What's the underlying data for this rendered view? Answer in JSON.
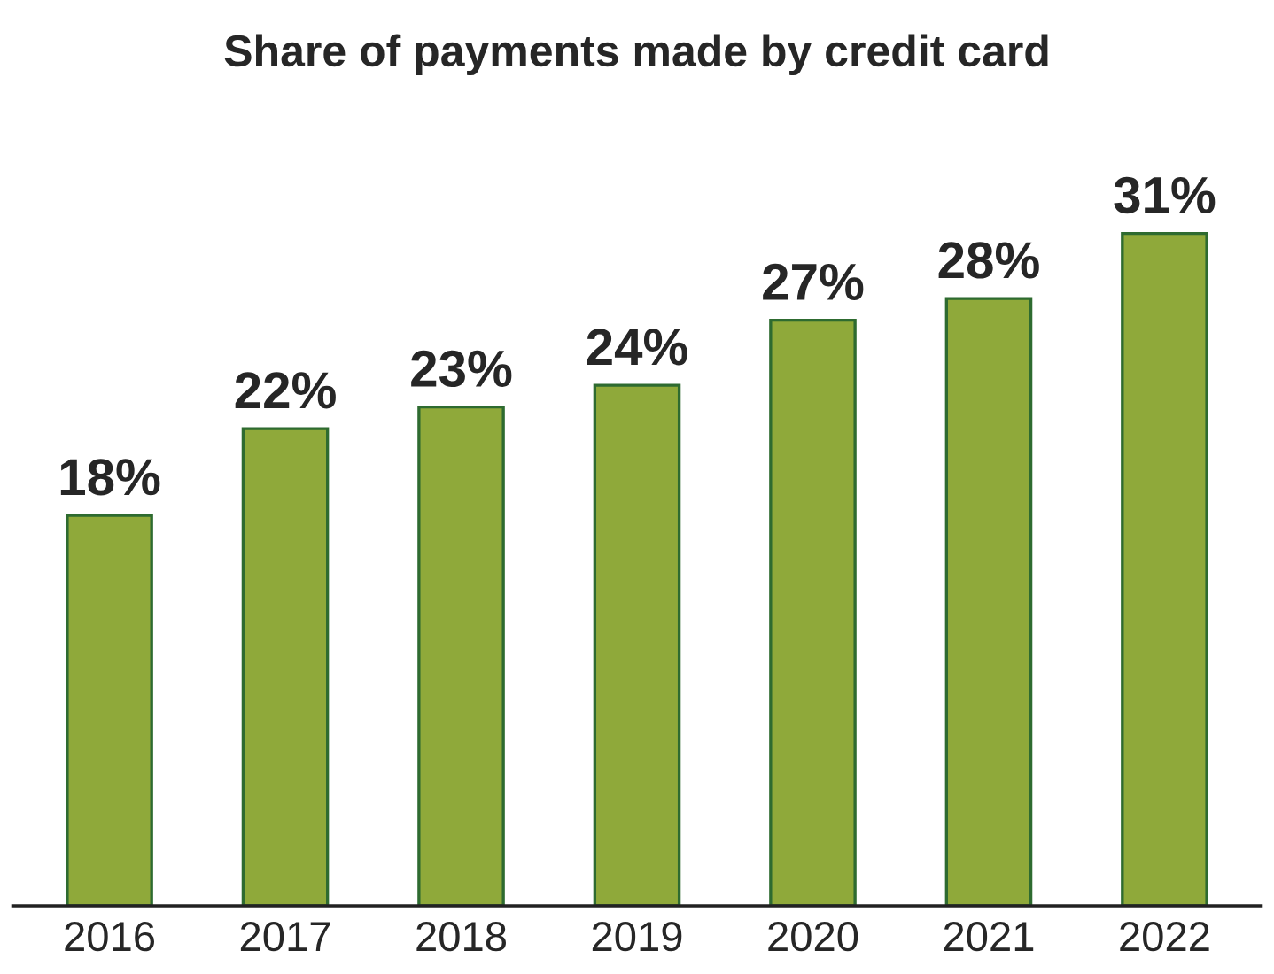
{
  "chart_data": {
    "type": "bar",
    "title": "Share of payments made by credit card",
    "categories": [
      "2016",
      "2017",
      "2018",
      "2019",
      "2020",
      "2021",
      "2022"
    ],
    "values": [
      18,
      22,
      23,
      24,
      27,
      28,
      31
    ],
    "value_labels": [
      "18%",
      "22%",
      "23%",
      "24%",
      "27%",
      "28%",
      "31%"
    ],
    "color": "#8fa93a",
    "grid": false,
    "legend": false
  }
}
